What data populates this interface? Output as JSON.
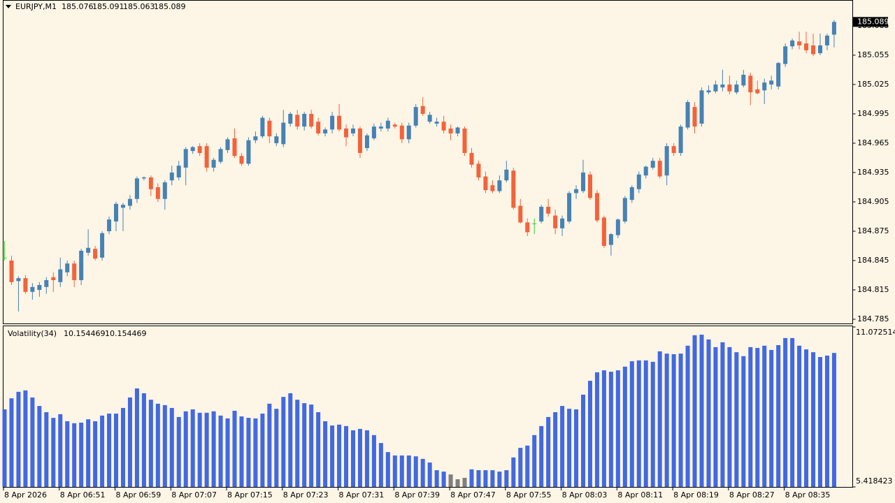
{
  "chart_data": [
    {
      "type": "candlestick",
      "title": "EURJPY,M1",
      "categories": [
        "8 Apr 2026",
        null,
        null,
        null,
        null,
        null,
        null,
        null,
        "8 Apr 06:51",
        null,
        null,
        null,
        null,
        null,
        null,
        null,
        "8 Apr 06:59",
        null,
        null,
        null,
        null,
        null,
        null,
        null,
        "8 Apr 07:07",
        null,
        null,
        null,
        null,
        null,
        null,
        null,
        "8 Apr 07:15",
        null,
        null,
        null,
        null,
        null,
        null,
        null,
        "8 Apr 07:23",
        null,
        null,
        null,
        null,
        null,
        null,
        null,
        "8 Apr 07:31",
        null,
        null,
        null,
        null,
        null,
        null,
        null,
        "8 Apr 07:39",
        null,
        null,
        null,
        null,
        null,
        null,
        null,
        "8 Apr 07:47",
        null,
        null,
        null,
        null,
        null,
        null,
        null,
        "8 Apr 07:55",
        null,
        null,
        null,
        null,
        null,
        null,
        null,
        "8 Apr 08:03",
        null,
        null,
        null,
        null,
        null,
        null,
        null,
        "8 Apr 08:11",
        null,
        null,
        null,
        null,
        null,
        null,
        null,
        "8 Apr 08:19",
        null,
        null,
        null,
        null,
        null,
        null,
        null,
        "8 Apr 08:27",
        null,
        null,
        null,
        null,
        null,
        null,
        null,
        "8 Apr 08:35",
        null,
        null,
        null,
        null,
        null,
        null,
        null
      ],
      "open": [
        184.848,
        184.845,
        184.824,
        184.827,
        184.813,
        184.815,
        184.818,
        184.828,
        184.823,
        184.833,
        184.842,
        184.825,
        184.853,
        184.857,
        184.848,
        184.875,
        184.885,
        184.899,
        184.901,
        184.908,
        184.929,
        184.93,
        184.92,
        184.908,
        184.927,
        184.93,
        184.94,
        184.957,
        184.962,
        184.962,
        184.94,
        184.946,
        184.958,
        184.97,
        184.952,
        184.944,
        184.968,
        184.972,
        184.988,
        184.965,
        184.964,
        184.985,
        184.994,
        184.982,
        184.995,
        184.987,
        184.975,
        184.979,
        184.993,
        184.98,
        184.975,
        184.98,
        184.96,
        184.97,
        184.98,
        184.98,
        184.984,
        184.983,
        184.969,
        184.983,
        185.003,
        184.987,
        184.985,
        184.987,
        184.98,
        184.975,
        184.98,
        184.955,
        184.944,
        184.931,
        184.922,
        184.916,
        184.927,
        184.937,
        184.901,
        184.884,
        184.883,
        184.885,
        184.9,
        184.891,
        184.878,
        184.885,
        184.914,
        184.916,
        184.933,
        184.914,
        184.889,
        184.861,
        184.871,
        184.885,
        184.907,
        184.918,
        184.932,
        184.94,
        184.947,
        184.932,
        184.962,
        184.955,
        184.981,
        185.002,
        184.985,
        185.017,
        185.018,
        185.022,
        185.025,
        185.017,
        185.024,
        185.034,
        185.02,
        185.019,
        185.025,
        185.023,
        185.046,
        185.064,
        185.069,
        185.067,
        185.065,
        185.057,
        185.065,
        185.076
      ],
      "high": [
        184.865,
        184.85,
        184.829,
        184.83,
        184.822,
        184.823,
        184.828,
        184.833,
        184.848,
        184.845,
        184.845,
        184.857,
        184.877,
        184.86,
        184.875,
        184.89,
        184.905,
        184.904,
        184.912,
        184.931,
        184.931,
        184.932,
        184.924,
        184.927,
        184.942,
        184.947,
        184.961,
        184.962,
        184.965,
        184.965,
        184.95,
        184.961,
        184.971,
        184.98,
        184.955,
        184.971,
        184.977,
        184.993,
        184.991,
        184.975,
        184.999,
        184.997,
        184.999,
        184.997,
        184.999,
        184.991,
        184.981,
        184.997,
        185.005,
        184.984,
        184.984,
        184.982,
        184.975,
        184.985,
        184.986,
        184.991,
        184.986,
        184.986,
        184.986,
        185.005,
        185.012,
        184.997,
        184.991,
        184.993,
        184.984,
        184.982,
        184.982,
        184.96,
        184.947,
        184.936,
        184.927,
        184.932,
        184.947,
        184.94,
        184.908,
        184.888,
        184.888,
        184.902,
        184.908,
        184.897,
        184.891,
        184.916,
        184.922,
        184.948,
        184.936,
        184.917,
        184.891,
        184.873,
        184.888,
        184.911,
        184.922,
        184.936,
        184.942,
        184.95,
        184.95,
        184.965,
        184.965,
        184.984,
        185.009,
        185.007,
        185.022,
        185.024,
        185.029,
        185.04,
        185.034,
        185.029,
        185.04,
        185.037,
        185.029,
        185.031,
        185.034,
        185.048,
        185.067,
        185.072,
        185.079,
        185.079,
        185.077,
        185.077,
        185.077,
        185.091
      ],
      "low": [
        184.845,
        184.82,
        184.793,
        184.811,
        184.805,
        184.808,
        184.811,
        184.813,
        184.818,
        184.829,
        184.818,
        184.82,
        184.85,
        184.845,
        184.845,
        184.872,
        184.875,
        184.875,
        184.897,
        184.904,
        184.927,
        184.911,
        184.905,
        184.897,
        184.922,
        184.927,
        184.922,
        184.954,
        184.952,
        184.936,
        184.936,
        184.944,
        184.955,
        184.95,
        184.942,
        184.942,
        184.965,
        184.97,
        184.965,
        184.962,
        184.961,
        184.982,
        184.979,
        184.978,
        184.98,
        184.973,
        184.972,
        184.975,
        184.977,
        184.962,
        184.972,
        184.95,
        184.957,
        184.968,
        184.977,
        184.977,
        184.98,
        184.965,
        184.965,
        184.981,
        184.993,
        184.985,
        184.982,
        184.975,
        184.968,
        184.972,
        184.952,
        184.94,
        184.927,
        184.914,
        184.914,
        184.914,
        184.925,
        184.897,
        184.883,
        184.87,
        184.872,
        184.883,
        184.89,
        184.872,
        184.87,
        184.883,
        184.908,
        184.914,
        184.907,
        184.884,
        184.858,
        184.85,
        184.868,
        184.883,
        184.904,
        184.914,
        184.929,
        184.938,
        184.929,
        184.922,
        184.952,
        184.952,
        184.979,
        184.975,
        184.982,
        185.015,
        185.016,
        185.018,
        185.015,
        185.015,
        185.022,
        185.004,
        185.015,
        185.005,
        185.02,
        185.02,
        185.043,
        185.061,
        185.061,
        185.057,
        185.054,
        185.055,
        185.06,
        185.063
      ],
      "close": [
        184.848,
        184.823,
        184.827,
        184.813,
        184.818,
        184.82,
        184.825,
        184.825,
        184.836,
        184.842,
        184.825,
        184.855,
        184.858,
        184.847,
        184.873,
        184.887,
        184.903,
        184.902,
        184.908,
        184.929,
        184.93,
        184.918,
        184.908,
        184.925,
        184.935,
        184.942,
        184.959,
        184.961,
        184.955,
        184.94,
        184.948,
        184.959,
        184.969,
        184.952,
        184.944,
        184.968,
        184.972,
        184.991,
        184.972,
        184.972,
        184.986,
        184.995,
        184.982,
        184.995,
        184.982,
        184.975,
        184.979,
        184.993,
        184.979,
        184.971,
        184.98,
        184.955,
        184.973,
        184.982,
        184.982,
        184.988,
        184.982,
        184.969,
        184.983,
        185.002,
        184.995,
        184.994,
        184.987,
        184.978,
        184.975,
        184.981,
        184.955,
        184.943,
        184.93,
        184.917,
        184.916,
        184.927,
        184.938,
        184.899,
        184.884,
        184.874,
        184.883,
        184.9,
        184.893,
        184.878,
        184.888,
        184.914,
        184.918,
        184.935,
        184.909,
        184.886,
        184.86,
        184.872,
        184.887,
        184.909,
        184.92,
        184.933,
        184.941,
        184.947,
        184.931,
        184.962,
        184.955,
        184.982,
        185.007,
        184.982,
        185.019,
        185.019,
        185.025,
        185.025,
        185.018,
        185.025,
        185.035,
        185.017,
        185.016,
        185.027,
        185.029,
        185.047,
        185.064,
        185.07,
        185.065,
        185.06,
        185.056,
        185.065,
        185.075,
        185.089
      ],
      "up_color": "#4682b4",
      "down_color": "#f4623a",
      "doji_color": "#32cd32",
      "ylim": [
        184.7807,
        185.1114
      ],
      "yticks": [
        185.085,
        185.055,
        185.025,
        184.995,
        184.965,
        184.935,
        184.905,
        184.875,
        184.845,
        184.815,
        184.785
      ]
    },
    {
      "type": "bar",
      "title": "Volatility(34)",
      "values": [
        8.16,
        8.55,
        8.78,
        8.83,
        8.58,
        8.28,
        8.06,
        7.86,
        7.99,
        7.74,
        7.67,
        7.69,
        7.81,
        7.74,
        7.94,
        8.01,
        8.01,
        8.21,
        8.58,
        8.9,
        8.73,
        8.5,
        8.36,
        8.31,
        8.21,
        7.89,
        8.09,
        8.16,
        8.04,
        8.04,
        8.09,
        7.94,
        7.84,
        8.11,
        7.91,
        7.86,
        7.84,
        8.01,
        8.36,
        8.18,
        8.6,
        8.73,
        8.5,
        8.38,
        8.33,
        8.06,
        7.74,
        7.59,
        7.62,
        7.57,
        7.42,
        7.47,
        7.42,
        7.25,
        6.97,
        6.65,
        6.53,
        6.53,
        6.53,
        6.5,
        6.41,
        6.28,
        6.01,
        5.96,
        5.86,
        5.69,
        5.74,
        6.04,
        6.01,
        6.01,
        6.01,
        5.96,
        6.01,
        6.46,
        6.8,
        6.88,
        7.25,
        7.57,
        7.89,
        8.06,
        8.28,
        8.18,
        8.16,
        8.68,
        9.17,
        9.47,
        9.54,
        9.49,
        9.54,
        9.67,
        9.86,
        9.89,
        9.89,
        9.84,
        10.21,
        10.13,
        10.11,
        10.13,
        10.41,
        10.78,
        10.8,
        10.63,
        10.36,
        10.53,
        10.36,
        10.18,
        10.04,
        10.36,
        10.33,
        10.41,
        10.26,
        10.43,
        10.68,
        10.68,
        10.41,
        10.28,
        10.18,
        10.01,
        10.06,
        10.154469
      ],
      "colors": [
        "#4169e1",
        "#4169e1",
        "#4169e1",
        "#4169e1",
        "#4169e1",
        "#4169e1",
        "#4169e1",
        "#4169e1",
        "#4169e1",
        "#4169e1",
        "#4169e1",
        "#4169e1",
        "#4169e1",
        "#4169e1",
        "#4169e1",
        "#4169e1",
        "#4169e1",
        "#4169e1",
        "#4169e1",
        "#4169e1",
        "#4169e1",
        "#4169e1",
        "#4169e1",
        "#4169e1",
        "#4169e1",
        "#4169e1",
        "#4169e1",
        "#4169e1",
        "#4169e1",
        "#4169e1",
        "#4169e1",
        "#4169e1",
        "#4169e1",
        "#4169e1",
        "#4169e1",
        "#4169e1",
        "#4169e1",
        "#4169e1",
        "#4169e1",
        "#4169e1",
        "#4169e1",
        "#4169e1",
        "#4169e1",
        "#4169e1",
        "#4169e1",
        "#4169e1",
        "#4169e1",
        "#4169e1",
        "#4169e1",
        "#4169e1",
        "#4169e1",
        "#4169e1",
        "#4169e1",
        "#4169e1",
        "#4169e1",
        "#4169e1",
        "#4169e1",
        "#4169e1",
        "#4169e1",
        "#4169e1",
        "#4169e1",
        "#4169e1",
        "#4169e1",
        "#4169e1",
        "#808080",
        "#808080",
        "#808080",
        "#4169e1",
        "#4169e1",
        "#4169e1",
        "#4169e1",
        "#4169e1",
        "#4169e1",
        "#4169e1",
        "#4169e1",
        "#4169e1",
        "#4169e1",
        "#4169e1",
        "#4169e1",
        "#4169e1",
        "#4169e1",
        "#4169e1",
        "#4169e1",
        "#4169e1",
        "#4169e1",
        "#4169e1",
        "#4169e1",
        "#4169e1",
        "#4169e1",
        "#4169e1",
        "#4169e1",
        "#4169e1",
        "#4169e1",
        "#4169e1",
        "#4169e1",
        "#4169e1",
        "#4169e1",
        "#4169e1",
        "#4169e1",
        "#4169e1",
        "#4169e1",
        "#4169e1",
        "#4169e1",
        "#4169e1",
        "#4169e1",
        "#4169e1",
        "#4169e1",
        "#4169e1",
        "#4169e1",
        "#4169e1",
        "#4169e1",
        "#4169e1",
        "#4169e1",
        "#4169e1",
        "#4169e1",
        "#4169e1",
        "#4169e1",
        "#4169e1",
        "#4169e1",
        "#4169e1"
      ],
      "ylim": [
        5.418423,
        11.072514
      ],
      "yticks": [
        5.418423,
        11.072514
      ]
    }
  ]
}
